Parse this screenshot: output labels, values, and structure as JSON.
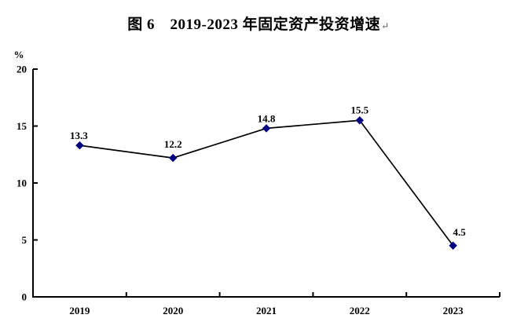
{
  "title": {
    "text": "图 6　2019-2023 年固定资产投资增速",
    "return_mark": "↵"
  },
  "chart_data": {
    "type": "line",
    "title": "图 6 2019-2023 年固定资产投资增速",
    "categories": [
      "2019",
      "2020",
      "2021",
      "2022",
      "2023"
    ],
    "series": [
      {
        "name": "固定资产投资增速",
        "values": [
          13.3,
          12.2,
          14.8,
          15.5,
          4.5
        ]
      }
    ],
    "data_labels": [
      "13.3",
      "12.2",
      "14.8",
      "15.5",
      "4.5"
    ],
    "xlabel": "",
    "ylabel": "%",
    "ylim": [
      0,
      20
    ],
    "yticks": [
      0,
      5,
      10,
      15,
      20
    ],
    "grid": false,
    "legend_position": "none",
    "line_color": "#000000",
    "marker_color": "#000080",
    "marker_shape": "diamond",
    "axis_color": "#000000",
    "label_color": "#000000"
  }
}
